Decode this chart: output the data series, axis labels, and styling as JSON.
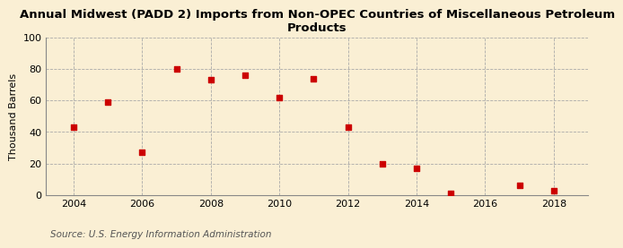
{
  "title": "Annual Midwest (PADD 2) Imports from Non-OPEC Countries of Miscellaneous Petroleum\nProducts",
  "ylabel": "Thousand Barrels",
  "source": "Source: U.S. Energy Information Administration",
  "x_data": [
    2004,
    2005,
    2006,
    2007,
    2008,
    2009,
    2010,
    2011,
    2012,
    2013,
    2014,
    2015,
    2017,
    2018
  ],
  "y_data": [
    43,
    59,
    27,
    80,
    73,
    76,
    62,
    74,
    43,
    20,
    17,
    1,
    6,
    3
  ],
  "marker_color": "#cc0000",
  "marker_size": 25,
  "background_color": "#faefd4",
  "grid_color": "#aaaaaa",
  "xlim": [
    2003.2,
    2019
  ],
  "ylim": [
    0,
    100
  ],
  "xticks": [
    2004,
    2006,
    2008,
    2010,
    2012,
    2014,
    2016,
    2018
  ],
  "yticks": [
    0,
    20,
    40,
    60,
    80,
    100
  ],
  "title_fontsize": 9.5,
  "axis_fontsize": 8,
  "source_fontsize": 7.5
}
